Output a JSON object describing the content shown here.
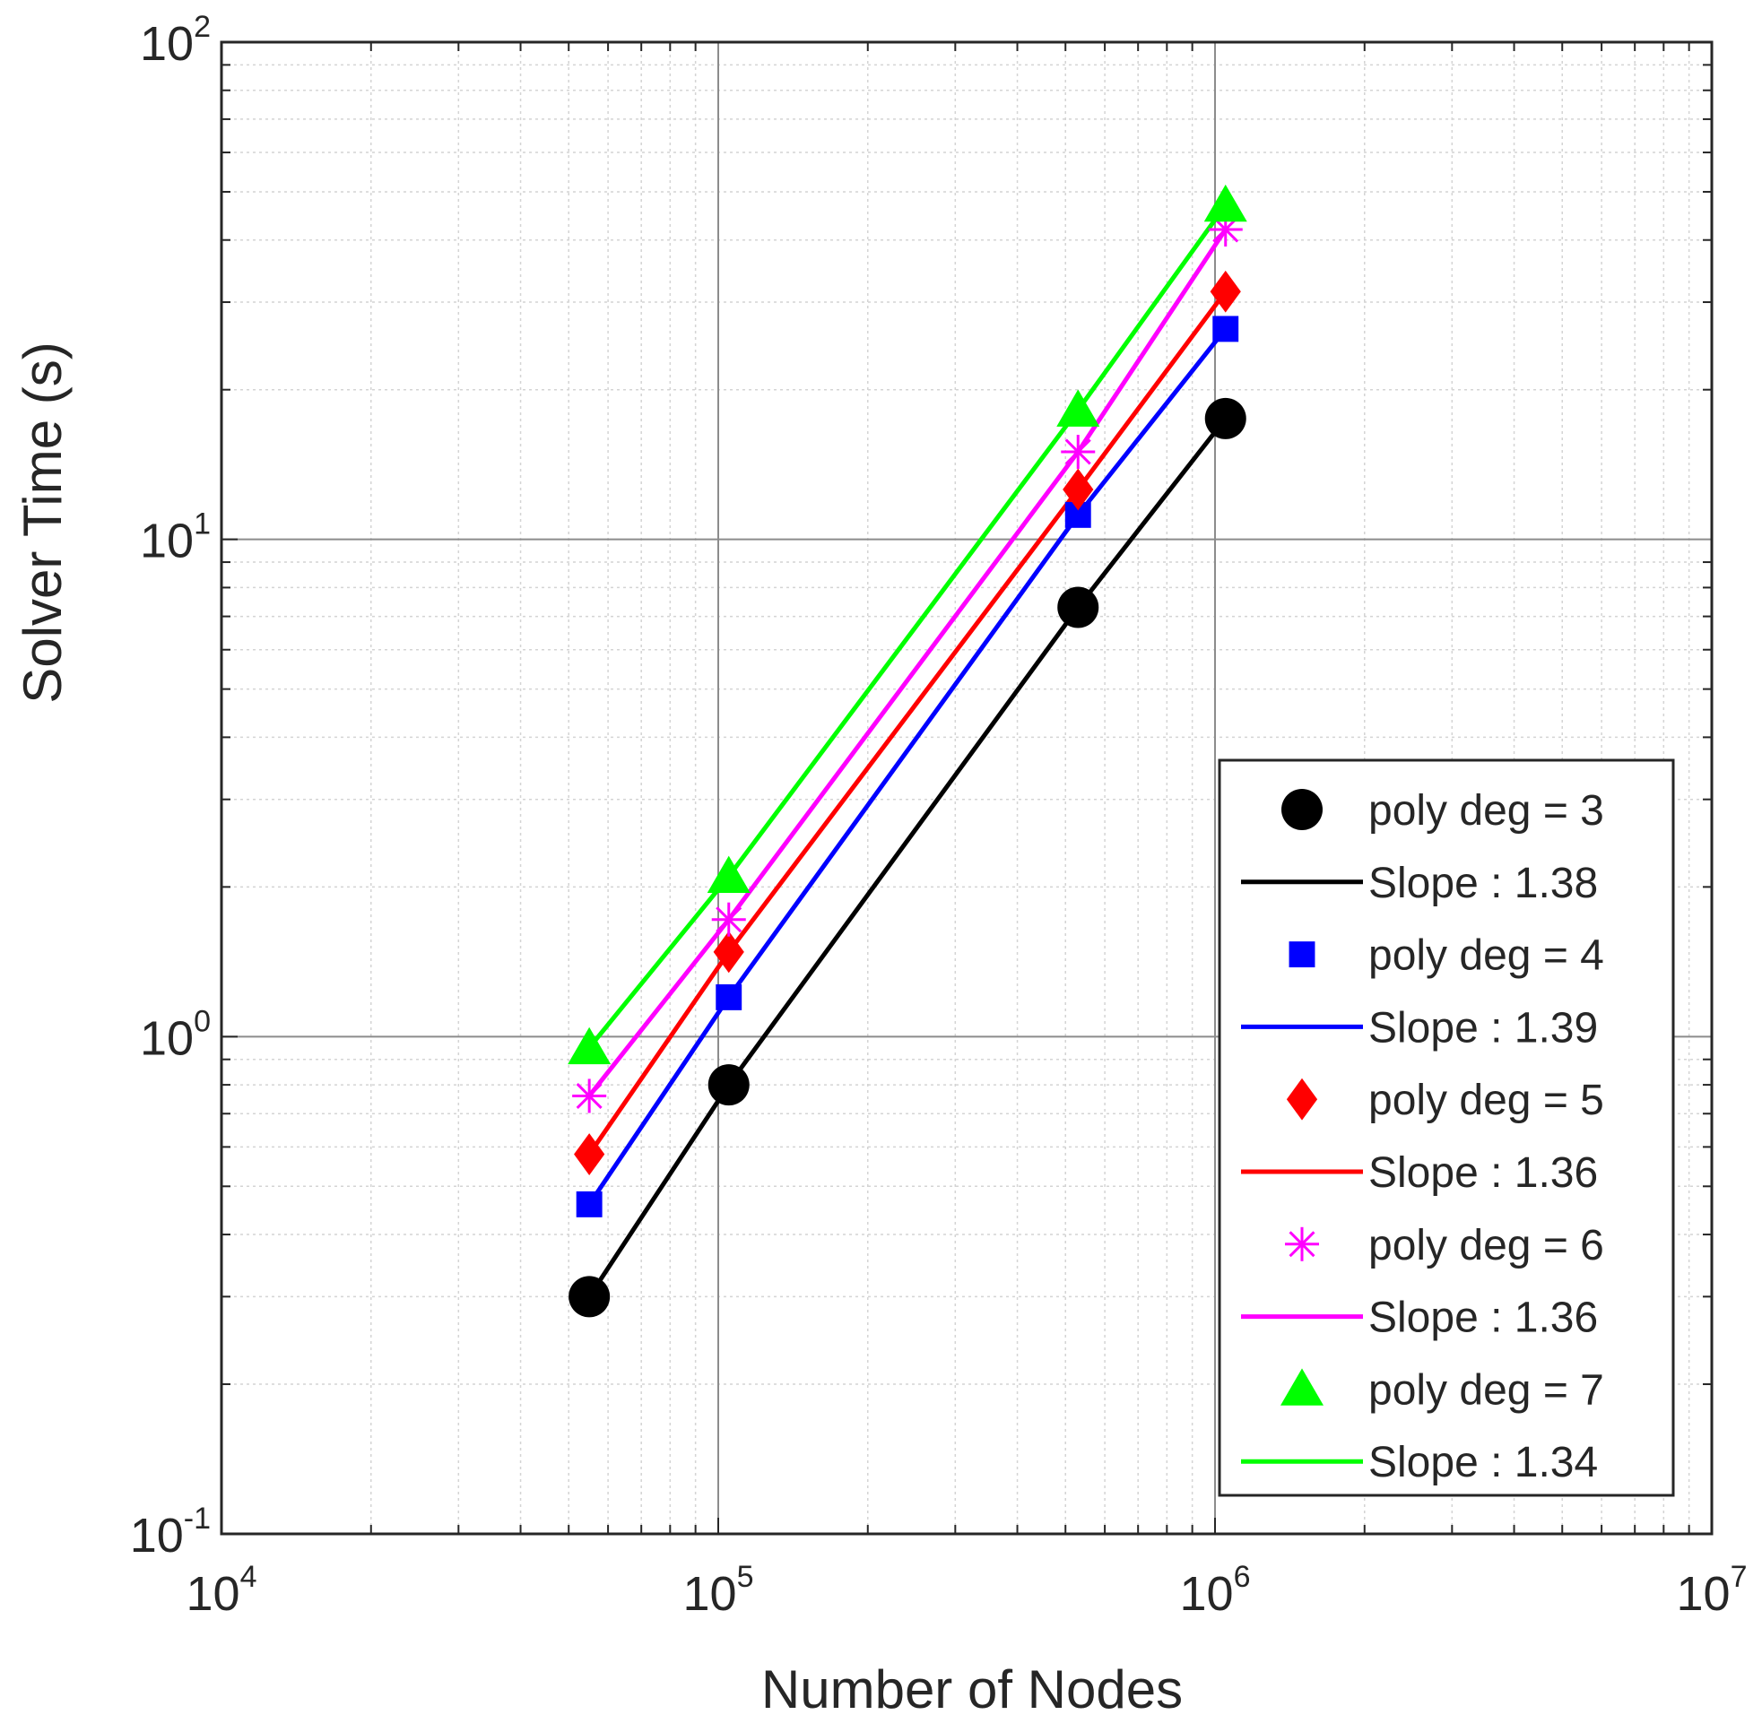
{
  "chart_data": {
    "type": "line",
    "xscale": "log",
    "yscale": "log",
    "xlim": [
      10000,
      10000000
    ],
    "ylim": [
      0.1,
      100
    ],
    "xlabel": "Number of Nodes",
    "ylabel": "Solver Time (s)",
    "grid": true,
    "minor_grid": true,
    "legend_position": "bottom-right",
    "xticks": [
      {
        "value": 10000,
        "base": "10",
        "exp": "4"
      },
      {
        "value": 100000,
        "base": "10",
        "exp": "5"
      },
      {
        "value": 1000000,
        "base": "10",
        "exp": "6"
      },
      {
        "value": 10000000,
        "base": "10",
        "exp": "7"
      }
    ],
    "yticks": [
      {
        "value": 0.1,
        "base": "10",
        "exp": "-1"
      },
      {
        "value": 1,
        "base": "10",
        "exp": "0"
      },
      {
        "value": 10,
        "base": "10",
        "exp": "1"
      },
      {
        "value": 100,
        "base": "10",
        "exp": "2"
      }
    ],
    "series": [
      {
        "name": "poly deg = 3",
        "fit_label": "Slope : 1.38",
        "color": "#000000",
        "marker": "circle",
        "x": [
          55000,
          105000,
          530000,
          1050000
        ],
        "y": [
          0.3,
          0.8,
          7.3,
          17.5
        ]
      },
      {
        "name": "poly deg = 4",
        "fit_label": "Slope : 1.39",
        "color": "#0000ff",
        "marker": "square",
        "x": [
          55000,
          105000,
          530000,
          1050000
        ],
        "y": [
          0.46,
          1.2,
          11.2,
          26.5
        ]
      },
      {
        "name": "poly deg = 5",
        "fit_label": "Slope : 1.36",
        "color": "#ff0000",
        "marker": "diamond",
        "x": [
          55000,
          105000,
          530000,
          1050000
        ],
        "y": [
          0.58,
          1.48,
          12.6,
          31.5
        ]
      },
      {
        "name": "poly deg = 6",
        "fit_label": "Slope : 1.36",
        "color": "#ff00ff",
        "marker": "asterisk",
        "x": [
          55000,
          105000,
          530000,
          1050000
        ],
        "y": [
          0.76,
          1.72,
          15.0,
          42.0
        ]
      },
      {
        "name": "poly deg = 7",
        "fit_label": "Slope : 1.34",
        "color": "#00ff00",
        "marker": "triangle",
        "x": [
          55000,
          105000,
          530000,
          1050000
        ],
        "y": [
          0.95,
          2.1,
          18.2,
          47.0
        ]
      }
    ]
  }
}
